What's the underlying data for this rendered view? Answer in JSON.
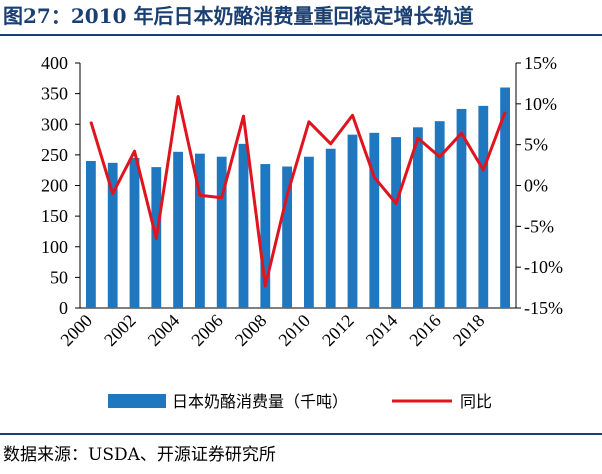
{
  "figure": {
    "title": "图27：2010 年后日本奶酪消费量重回稳定增长轨道",
    "source": "数据来源：USDA、开源证券研究所"
  },
  "colors": {
    "bar": "#1f77c0",
    "line": "#e0141e",
    "title": "#1a3f72"
  },
  "chart_data": {
    "type": "bar",
    "combo": "bar + line (dual axis)",
    "categories": [
      "2000",
      "2001",
      "2002",
      "2003",
      "2004",
      "2005",
      "2006",
      "2007",
      "2008",
      "2009",
      "2010",
      "2011",
      "2012",
      "2013",
      "2014",
      "2015",
      "2016",
      "2017",
      "2018",
      "2019"
    ],
    "x_tick_labels": [
      "2000",
      "2002",
      "2004",
      "2006",
      "2008",
      "2010",
      "2012",
      "2014",
      "2016",
      "2018"
    ],
    "series": [
      {
        "name": "日本奶酪消费量（千吨）",
        "type": "bar",
        "axis": "left",
        "values": [
          240,
          237,
          245,
          230,
          255,
          252,
          247,
          268,
          235,
          231,
          247,
          260,
          283,
          286,
          279,
          295,
          305,
          325,
          330,
          360
        ]
      },
      {
        "name": "同比",
        "type": "line",
        "axis": "right",
        "unit": "%",
        "values": [
          7.8,
          -1.0,
          4.2,
          -6.5,
          10.9,
          -1.2,
          -1.5,
          8.5,
          -12.3,
          -1.2,
          7.8,
          5.1,
          8.6,
          1.0,
          -2.2,
          5.8,
          3.5,
          6.4,
          1.9,
          9.0
        ]
      }
    ],
    "y_left": {
      "lim": [
        0,
        400
      ],
      "ticks": [
        "0",
        "50",
        "100",
        "150",
        "200",
        "250",
        "300",
        "350",
        "400"
      ]
    },
    "y_right": {
      "lim": [
        -15,
        15
      ],
      "ticks": [
        "-15%",
        "-10%",
        "-5%",
        "0%",
        "5%",
        "10%",
        "15%"
      ]
    },
    "legend_position": "bottom"
  }
}
